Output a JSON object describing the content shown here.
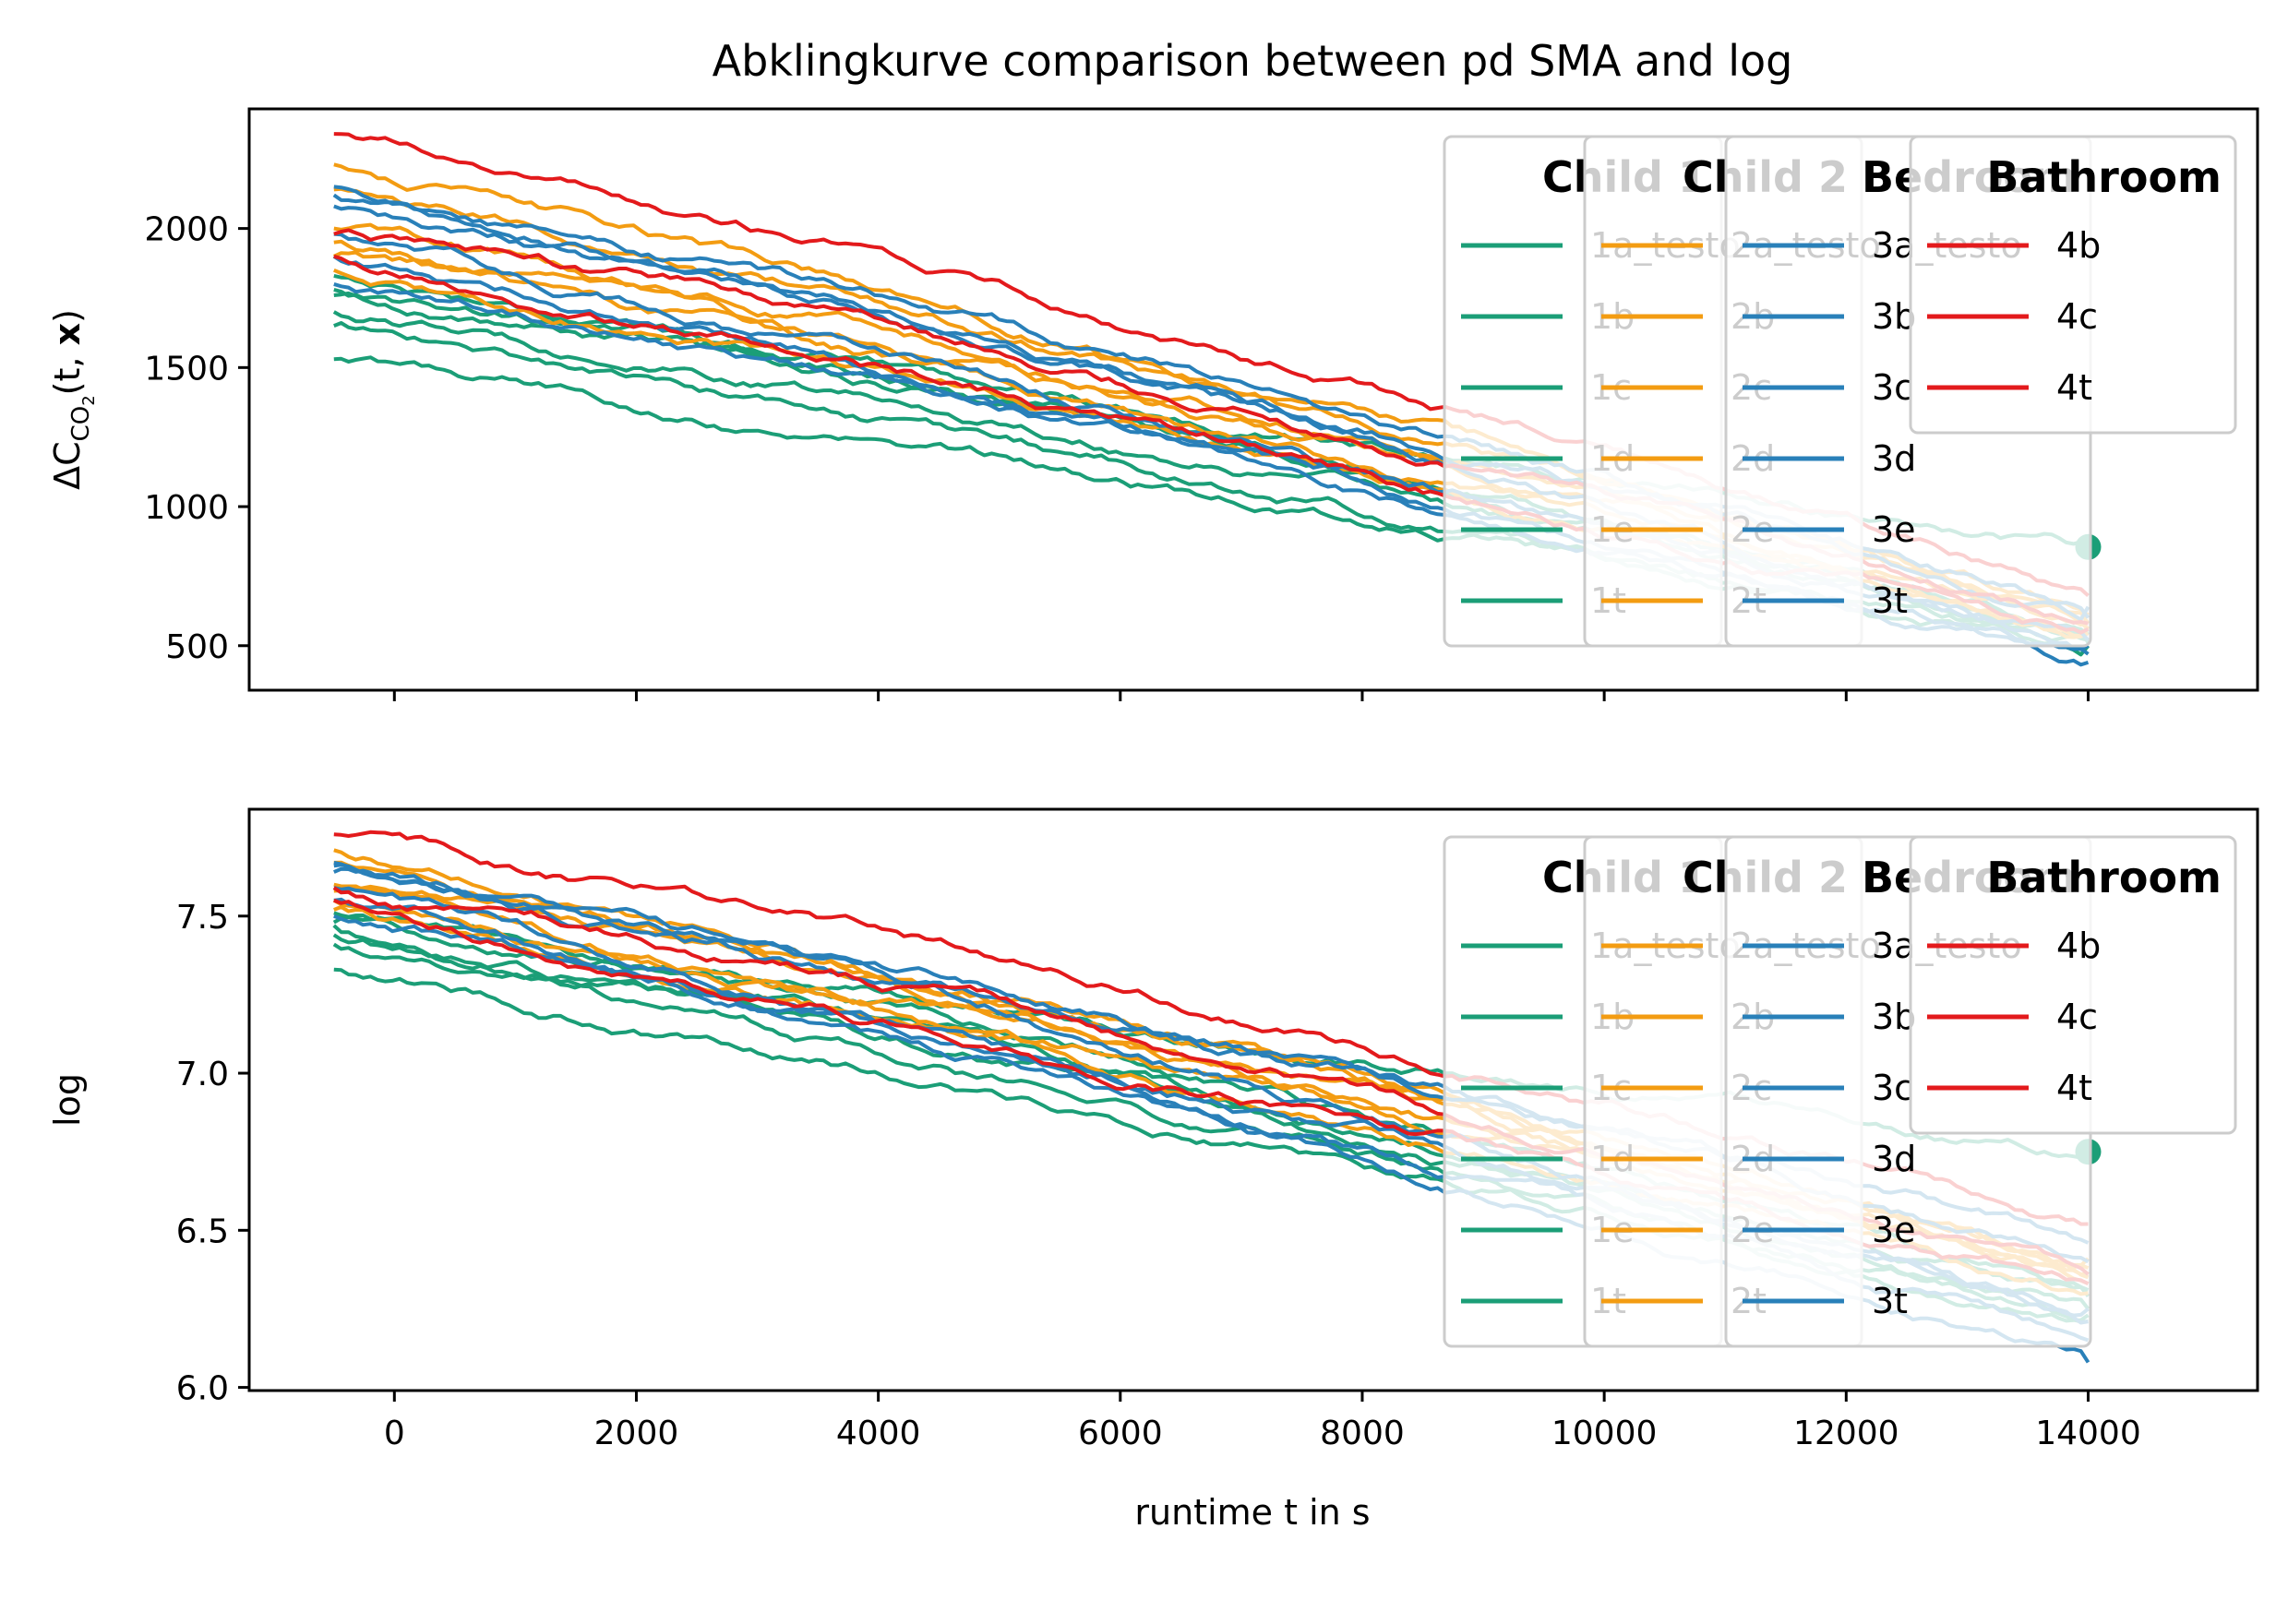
{
  "figure_title": "Abklingkurve comparison between pd SMA and log",
  "colors": {
    "Child 1": "#1b9e77",
    "Child 2": "#f39c12",
    "Bedroom": "#2980b9",
    "Bathroom": "#e31a1c"
  },
  "legend": {
    "groups": [
      {
        "title": "Child 1",
        "color": "#1b9e77",
        "labels": [
          "1a_testo",
          "1b",
          "1c",
          "1d",
          "1e",
          "1t"
        ]
      },
      {
        "title": "Child 2",
        "color": "#f39c12",
        "labels": [
          "2a_testo",
          "2b",
          "2c",
          "2d",
          "2e",
          "2t"
        ]
      },
      {
        "title": "Bedroom",
        "color": "#2980b9",
        "labels": [
          "3a_testo",
          "3b",
          "3c",
          "3d",
          "3e",
          "3t"
        ]
      },
      {
        "title": "Bathroom",
        "color": "#e31a1c",
        "labels": [
          "4b",
          "4c",
          "4t"
        ]
      }
    ]
  },
  "chart_data": [
    {
      "type": "line",
      "title": "Abklingkurve comparison between pd SMA and log",
      "xlabel": "",
      "ylabel": "ΔC_CO2(t, x)",
      "ylabel_parts": {
        "delta": "ΔC",
        "sub": "CO",
        "subsub": "2",
        "open": "(t, ",
        "bold": "x",
        "close": ")"
      },
      "xlim": [
        -1200,
        15400
      ],
      "ylim": [
        340,
        2430
      ],
      "x_ticks": [
        0,
        2000,
        4000,
        6000,
        8000,
        10000,
        12000,
        14000
      ],
      "y_ticks": [
        500,
        1000,
        1500,
        2000
      ],
      "x_tick_labels_shown": false,
      "series": [
        {
          "name": "1a_testo",
          "group": "Child 1",
          "x": [
            -500,
            14000
          ],
          "y": [
            1780,
            855
          ]
        },
        {
          "name": "1b",
          "group": "Child 1",
          "x": [
            -500,
            14000
          ],
          "y": [
            1530,
            520
          ]
        },
        {
          "name": "1c",
          "group": "Child 1",
          "x": [
            -500,
            14000
          ],
          "y": [
            1700,
            540
          ]
        },
        {
          "name": "1d",
          "group": "Child 1",
          "x": [
            -500,
            14000
          ],
          "y": [
            1830,
            550
          ]
        },
        {
          "name": "1e",
          "group": "Child 1",
          "x": [
            -500,
            14000
          ],
          "y": [
            1760,
            500
          ]
        },
        {
          "name": "1t",
          "group": "Child 1",
          "x": [
            -500,
            14000
          ],
          "y": [
            1650,
            510
          ]
        },
        {
          "name": "2a_testo",
          "group": "Child 2",
          "x": [
            -500,
            14000
          ],
          "y": [
            2230,
            610
          ]
        },
        {
          "name": "2b",
          "group": "Child 2",
          "x": [
            -500,
            14000
          ],
          "y": [
            2140,
            580
          ]
        },
        {
          "name": "2c",
          "group": "Child 2",
          "x": [
            -500,
            14000
          ],
          "y": [
            1900,
            560
          ]
        },
        {
          "name": "2d",
          "group": "Child 2",
          "x": [
            -500,
            14000
          ],
          "y": [
            2000,
            590
          ]
        },
        {
          "name": "2e",
          "group": "Child 2",
          "x": [
            -500,
            14000
          ],
          "y": [
            1950,
            570
          ]
        },
        {
          "name": "2t",
          "group": "Child 2",
          "x": [
            -500,
            14000
          ],
          "y": [
            1850,
            545
          ]
        },
        {
          "name": "3a_testo",
          "group": "Bedroom",
          "x": [
            -500,
            14000
          ],
          "y": [
            2150,
            640
          ]
        },
        {
          "name": "3b",
          "group": "Bedroom",
          "x": [
            -500,
            14000
          ],
          "y": [
            2120,
            600
          ]
        },
        {
          "name": "3c",
          "group": "Bedroom",
          "x": [
            -500,
            14000
          ],
          "y": [
            2080,
            500
          ]
        },
        {
          "name": "3d",
          "group": "Bedroom",
          "x": [
            -500,
            14000
          ],
          "y": [
            1980,
            470
          ]
        },
        {
          "name": "3e",
          "group": "Bedroom",
          "x": [
            -500,
            14000
          ],
          "y": [
            1900,
            440
          ]
        },
        {
          "name": "3t",
          "group": "Bedroom",
          "x": [
            -500,
            14000
          ],
          "y": [
            1800,
            520
          ]
        },
        {
          "name": "4b",
          "group": "Bathroom",
          "x": [
            -500,
            14000
          ],
          "y": [
            2340,
            680
          ]
        },
        {
          "name": "4c",
          "group": "Bathroom",
          "x": [
            -500,
            14000
          ],
          "y": [
            1980,
            580
          ]
        },
        {
          "name": "4t",
          "group": "Bathroom",
          "x": [
            -500,
            14000
          ],
          "y": [
            1900,
            560
          ]
        }
      ],
      "marker": {
        "x": 14000,
        "y": 855,
        "color": "#1b9e77"
      }
    },
    {
      "type": "line",
      "title": "",
      "xlabel": "runtime t in s",
      "ylabel": "log",
      "xlim": [
        -1200,
        15400
      ],
      "ylim": [
        5.99,
        7.84
      ],
      "x_ticks": [
        0,
        2000,
        4000,
        6000,
        8000,
        10000,
        12000,
        14000
      ],
      "x_tick_labels": [
        "0",
        "2000",
        "4000",
        "6000",
        "8000",
        "10000",
        "12000",
        "14000"
      ],
      "y_ticks": [
        6.0,
        6.5,
        7.0,
        7.5
      ],
      "y_tick_labels": [
        "6.0",
        "6.5",
        "7.0",
        "7.5"
      ],
      "series": [
        {
          "name": "1a_testo",
          "group": "Child 1",
          "x": [
            -500,
            14000
          ],
          "y": [
            7.48,
            6.75
          ]
        },
        {
          "name": "1b",
          "group": "Child 1",
          "x": [
            -500,
            14000
          ],
          "y": [
            7.33,
            6.25
          ]
        },
        {
          "name": "1c",
          "group": "Child 1",
          "x": [
            -500,
            14000
          ],
          "y": [
            7.44,
            6.29
          ]
        },
        {
          "name": "1d",
          "group": "Child 1",
          "x": [
            -500,
            14000
          ],
          "y": [
            7.51,
            6.31
          ]
        },
        {
          "name": "1e",
          "group": "Child 1",
          "x": [
            -500,
            14000
          ],
          "y": [
            7.47,
            6.21
          ]
        },
        {
          "name": "1t",
          "group": "Child 1",
          "x": [
            -500,
            14000
          ],
          "y": [
            7.41,
            6.23
          ]
        },
        {
          "name": "2a_testo",
          "group": "Child 2",
          "x": [
            -500,
            14000
          ],
          "y": [
            7.71,
            6.41
          ]
        },
        {
          "name": "2b",
          "group": "Child 2",
          "x": [
            -500,
            14000
          ],
          "y": [
            7.67,
            6.36
          ]
        },
        {
          "name": "2c",
          "group": "Child 2",
          "x": [
            -500,
            14000
          ],
          "y": [
            7.55,
            6.33
          ]
        },
        {
          "name": "2d",
          "group": "Child 2",
          "x": [
            -500,
            14000
          ],
          "y": [
            7.6,
            6.38
          ]
        },
        {
          "name": "2e",
          "group": "Child 2",
          "x": [
            -500,
            14000
          ],
          "y": [
            7.58,
            6.35
          ]
        },
        {
          "name": "2t",
          "group": "Child 2",
          "x": [
            -500,
            14000
          ],
          "y": [
            7.52,
            6.3
          ]
        },
        {
          "name": "3a_testo",
          "group": "Bedroom",
          "x": [
            -500,
            14000
          ],
          "y": [
            7.67,
            6.46
          ]
        },
        {
          "name": "3b",
          "group": "Bedroom",
          "x": [
            -500,
            14000
          ],
          "y": [
            7.66,
            6.4
          ]
        },
        {
          "name": "3c",
          "group": "Bedroom",
          "x": [
            -500,
            14000
          ],
          "y": [
            7.64,
            6.21
          ]
        },
        {
          "name": "3d",
          "group": "Bedroom",
          "x": [
            -500,
            14000
          ],
          "y": [
            7.59,
            6.15
          ]
        },
        {
          "name": "3e",
          "group": "Bedroom",
          "x": [
            -500,
            14000
          ],
          "y": [
            7.55,
            6.08
          ]
        },
        {
          "name": "3t",
          "group": "Bedroom",
          "x": [
            -500,
            14000
          ],
          "y": [
            7.5,
            6.25
          ]
        },
        {
          "name": "4b",
          "group": "Bathroom",
          "x": [
            -500,
            14000
          ],
          "y": [
            7.76,
            6.52
          ]
        },
        {
          "name": "4c",
          "group": "Bathroom",
          "x": [
            -500,
            14000
          ],
          "y": [
            7.59,
            6.36
          ]
        },
        {
          "name": "4t",
          "group": "Bathroom",
          "x": [
            -500,
            14000
          ],
          "y": [
            7.55,
            6.33
          ]
        }
      ],
      "marker": {
        "x": 14000,
        "y": 6.75,
        "color": "#1b9e77"
      }
    }
  ]
}
